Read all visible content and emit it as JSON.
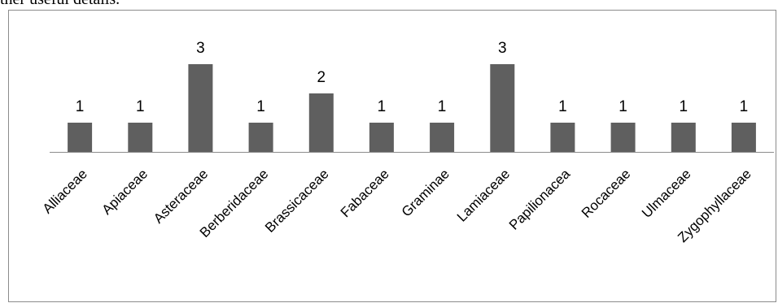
{
  "page": {
    "top_text": "ther useful details."
  },
  "chart_data": {
    "type": "bar",
    "title": "",
    "xlabel": "",
    "ylabel": "",
    "ylim": [
      0,
      3.5
    ],
    "grid": false,
    "bar_color": "#5f5f5f",
    "categories": [
      "Alliaceae",
      "Apiaceae",
      "Asteraceae",
      "Berberidaceae",
      "Brassicaceae",
      "Fabaceae",
      "Graminae",
      "Lamiaceae",
      "Papilionacea",
      "Rocaceae",
      "Ulmaceae",
      "Zygophyllaceae"
    ],
    "values": [
      1,
      1,
      3,
      1,
      2,
      1,
      1,
      3,
      1,
      1,
      1,
      1
    ],
    "data_labels": [
      "1",
      "1",
      "3",
      "1",
      "2",
      "1",
      "1",
      "3",
      "1",
      "1",
      "1",
      "1"
    ]
  }
}
